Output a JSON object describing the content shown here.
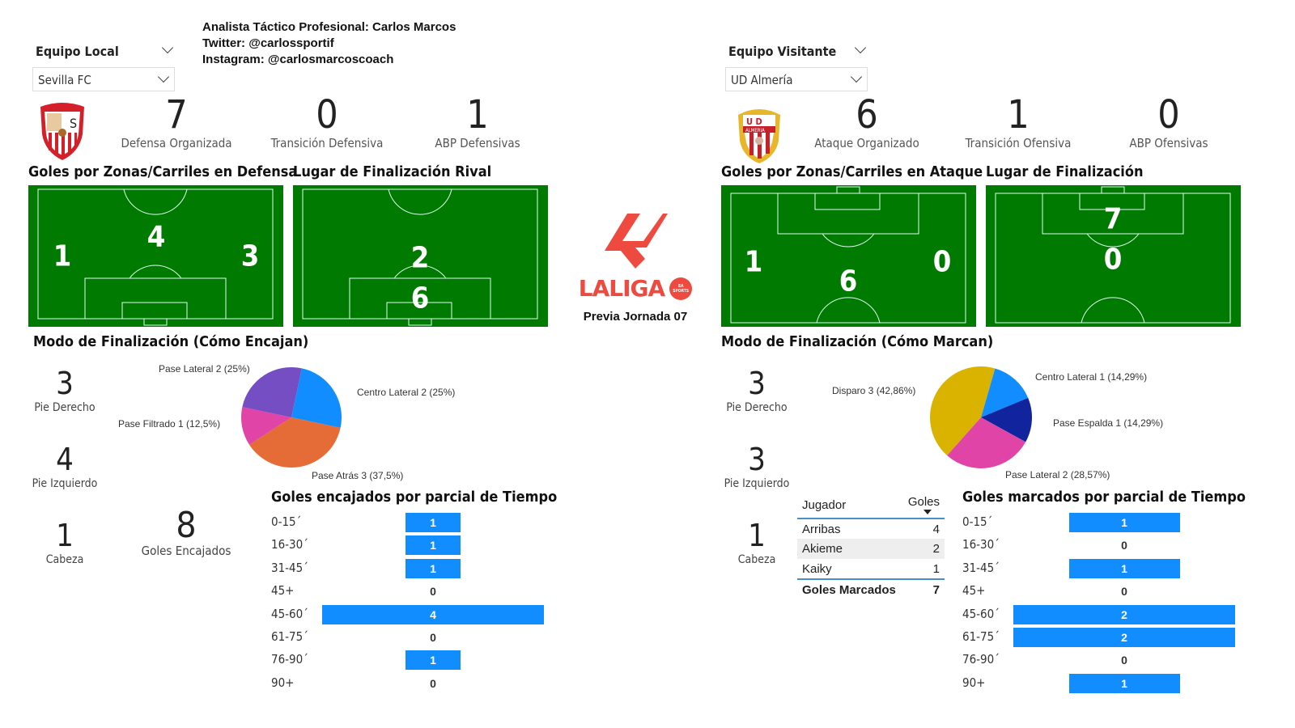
{
  "credits": [
    "Analista Táctico Profesional: Carlos Marcos",
    "Twitter: @carlossportif",
    "Instagram: @carlosmarcoscoach"
  ],
  "center": {
    "logo_text": "LALIGA",
    "logo_badge": "EA SPORTS",
    "subtitle": "Previa Jornada 07",
    "logo_color": "#ee4a3f"
  },
  "colors": {
    "pitch": "#007a00",
    "bar": "#118dff"
  },
  "home": {
    "slicer_title": "Equipo Local",
    "team": "Sevilla FC",
    "kpis": [
      {
        "value": "7",
        "label": "Defensa Organizada"
      },
      {
        "value": "0",
        "label": "Transición Defensiva"
      },
      {
        "value": "1",
        "label": "ABP Defensivas"
      }
    ],
    "zones_title": "Goles por Zonas/Carriles en Defensa",
    "zones": {
      "left": "1",
      "center": "4",
      "right": "3"
    },
    "finish_title": "Lugar de Finalización Rival",
    "finish": {
      "outside": "2",
      "inside": "6"
    },
    "mode_title": "Modo de Finalización (Cómo Encajan)",
    "modes": [
      {
        "value": "3",
        "label": "Pie Derecho"
      },
      {
        "value": "4",
        "label": "Pie Izquierdo"
      },
      {
        "value": "1",
        "label": "Cabeza"
      }
    ],
    "total": {
      "value": "8",
      "label": "Goles Encajados"
    },
    "bars_title": "Goles encajados por parcial de Tiempo"
  },
  "away": {
    "slicer_title": "Equipo Visitante",
    "team": "UD Almería",
    "kpis": [
      {
        "value": "6",
        "label": "Ataque Organizado"
      },
      {
        "value": "1",
        "label": "Transición Ofensiva"
      },
      {
        "value": "0",
        "label": "ABP Ofensivas"
      }
    ],
    "zones_title": "Goles por Zonas/Carriles en Ataque",
    "zones": {
      "left": "1",
      "center": "6",
      "right": "0"
    },
    "finish_title": "Lugar de Finalización",
    "finish": {
      "inside": "7",
      "outside": "0"
    },
    "mode_title": "Modo de Finalización (Cómo Marcan)",
    "modes": [
      {
        "value": "3",
        "label": "Pie Derecho"
      },
      {
        "value": "3",
        "label": "Pie Izquierdo"
      },
      {
        "value": "1",
        "label": "Cabeza"
      }
    ],
    "scorers": {
      "col1": "Jugador",
      "col2": "Goles",
      "rows": [
        {
          "name": "Arribas",
          "goals": "4"
        },
        {
          "name": "Akieme",
          "goals": "2"
        },
        {
          "name": "Kaiky",
          "goals": "1"
        }
      ],
      "total_label": "Goles Marcados",
      "total": "7"
    },
    "bars_title": "Goles marcados por parcial de Tiempo"
  },
  "chart_data": [
    {
      "type": "pie",
      "title": "Modo de Finalización (Cómo Encajan)",
      "slices": [
        {
          "label": "Centro Lateral 2 (25%)",
          "name": "Centro Lateral",
          "value": 2,
          "color": "#118dff"
        },
        {
          "label": "Pase Atrás 3 (37,5%)",
          "name": "Pase Atrás",
          "value": 3,
          "color": "#e66c37"
        },
        {
          "label": "Pase Filtrado 1 (12,5%)",
          "name": "Pase Filtrado",
          "value": 1,
          "color": "#e044a7"
        },
        {
          "label": "Pase Lateral 2 (25%)",
          "name": "Pase Lateral",
          "value": 2,
          "color": "#744ec2"
        }
      ]
    },
    {
      "type": "pie",
      "title": "Modo de Finalización (Cómo Marcan)",
      "slices": [
        {
          "label": "Centro Lateral 1 (14,29%)",
          "name": "Centro Lateral",
          "value": 1,
          "color": "#118dff"
        },
        {
          "label": "Pase Espalda 1 (14,29%)",
          "name": "Pase Espalda",
          "value": 1,
          "color": "#12239e"
        },
        {
          "label": "Pase Lateral 2 (28,57%)",
          "name": "Pase Lateral",
          "value": 2,
          "color": "#e044a7"
        },
        {
          "label": "Disparo 3 (42,86%)",
          "name": "Disparo",
          "value": 3,
          "color": "#d9b300"
        }
      ]
    },
    {
      "type": "bar",
      "orientation": "horizontal",
      "title": "Goles encajados por parcial de Tiempo",
      "categories": [
        "0-15´",
        "16-30´",
        "31-45´",
        "45+",
        "45-60´",
        "61-75´",
        "76-90´",
        "90+"
      ],
      "values": [
        1,
        1,
        1,
        0,
        4,
        0,
        1,
        0
      ]
    },
    {
      "type": "bar",
      "orientation": "horizontal",
      "title": "Goles marcados por parcial de Tiempo",
      "categories": [
        "0-15´",
        "16-30´",
        "31-45´",
        "45+",
        "45-60´",
        "61-75´",
        "76-90´",
        "90+"
      ],
      "values": [
        1,
        0,
        1,
        0,
        2,
        2,
        0,
        1
      ]
    }
  ]
}
